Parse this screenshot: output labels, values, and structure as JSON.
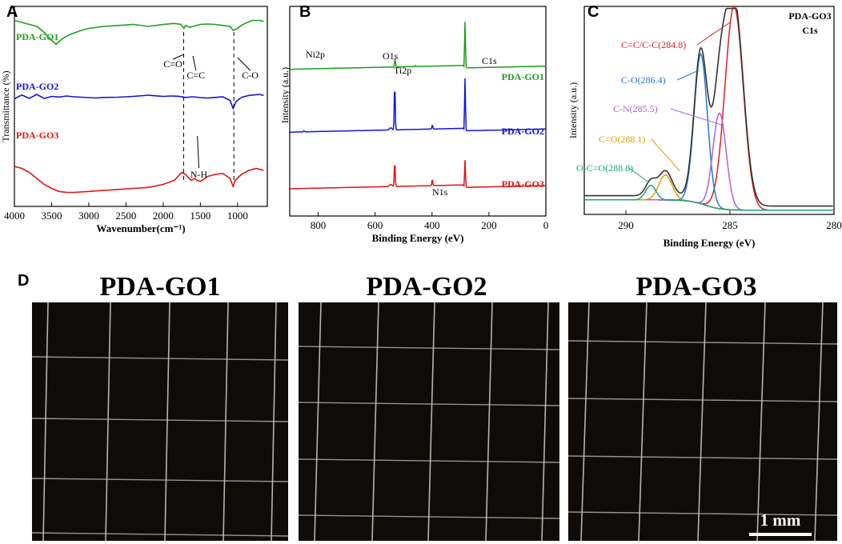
{
  "panels": {
    "a": "A",
    "b": "B",
    "c": "C",
    "d": "D"
  },
  "colors": {
    "go1": "#1e9e1e",
    "go2": "#1414d8",
    "go3": "#e01414",
    "grey": "#555555",
    "c_sum": "#333333",
    "c_cc": "#e02020",
    "c_co": "#1f78d8",
    "c_cn": "#b060d8",
    "c_ceo": "#e0a000",
    "c_oceo": "#20a080",
    "c_base": "#20a020"
  },
  "chart_data": [
    {
      "id": "ftir",
      "type": "line",
      "xlabel": "Wavenumber(cm⁻¹)",
      "ylabel": "Transmittance (%)",
      "xlim": [
        4000,
        600
      ],
      "x_ticks": [
        4000,
        3500,
        3000,
        2500,
        2000,
        1500,
        1000
      ],
      "series": [
        {
          "name": "PDA-GO1",
          "points": [
            [
              4000,
              0.93
            ],
            [
              3900,
              0.92
            ],
            [
              3800,
              0.91
            ],
            [
              3700,
              0.9
            ],
            [
              3600,
              0.87
            ],
            [
              3500,
              0.83
            ],
            [
              3440,
              0.81
            ],
            [
              3350,
              0.84
            ],
            [
              3250,
              0.86
            ],
            [
              3100,
              0.88
            ],
            [
              3000,
              0.89
            ],
            [
              2800,
              0.9
            ],
            [
              2600,
              0.905
            ],
            [
              2400,
              0.91
            ],
            [
              2200,
              0.9
            ],
            [
              2100,
              0.905
            ],
            [
              2000,
              0.91
            ],
            [
              1850,
              0.915
            ],
            [
              1760,
              0.91
            ],
            [
              1720,
              0.89
            ],
            [
              1700,
              0.905
            ],
            [
              1640,
              0.895
            ],
            [
              1600,
              0.9
            ],
            [
              1500,
              0.91
            ],
            [
              1400,
              0.912
            ],
            [
              1300,
              0.91
            ],
            [
              1200,
              0.905
            ],
            [
              1100,
              0.9
            ],
            [
              1060,
              0.88
            ],
            [
              1000,
              0.89
            ],
            [
              950,
              0.905
            ],
            [
              900,
              0.915
            ],
            [
              800,
              0.93
            ],
            [
              700,
              0.93
            ],
            [
              650,
              0.925
            ]
          ]
        },
        {
          "name": "PDA-GO2",
          "points": [
            [
              4000,
              0.55
            ],
            [
              3900,
              0.545
            ],
            [
              3800,
              0.552
            ],
            [
              3700,
              0.548
            ],
            [
              3600,
              0.552
            ],
            [
              3500,
              0.55
            ],
            [
              3400,
              0.547
            ],
            [
              3300,
              0.552
            ],
            [
              3200,
              0.548
            ],
            [
              3100,
              0.546
            ],
            [
              3000,
              0.544
            ],
            [
              2900,
              0.542
            ],
            [
              2800,
              0.545
            ],
            [
              2600,
              0.546
            ],
            [
              2400,
              0.55
            ],
            [
              2200,
              0.556
            ],
            [
              2100,
              0.553
            ],
            [
              2000,
              0.55
            ],
            [
              1900,
              0.552
            ],
            [
              1800,
              0.551
            ],
            [
              1700,
              0.545
            ],
            [
              1600,
              0.548
            ],
            [
              1500,
              0.544
            ],
            [
              1400,
              0.542
            ],
            [
              1300,
              0.545
            ],
            [
              1200,
              0.548
            ],
            [
              1100,
              0.53
            ],
            [
              1060,
              0.49
            ],
            [
              1020,
              0.525
            ],
            [
              950,
              0.545
            ],
            [
              850,
              0.555
            ],
            [
              700,
              0.56
            ],
            [
              650,
              0.555
            ]
          ]
        },
        {
          "name": "PDA-GO3",
          "points": [
            [
              4000,
              0.2
            ],
            [
              3900,
              0.19
            ],
            [
              3800,
              0.17
            ],
            [
              3700,
              0.14
            ],
            [
              3600,
              0.11
            ],
            [
              3500,
              0.09
            ],
            [
              3400,
              0.075
            ],
            [
              3300,
              0.07
            ],
            [
              3200,
              0.07
            ],
            [
              3000,
              0.075
            ],
            [
              2800,
              0.08
            ],
            [
              2600,
              0.085
            ],
            [
              2400,
              0.09
            ],
            [
              2200,
              0.095
            ],
            [
              2000,
              0.11
            ],
            [
              1850,
              0.13
            ],
            [
              1750,
              0.17
            ],
            [
              1700,
              0.16
            ],
            [
              1650,
              0.14
            ],
            [
              1620,
              0.13
            ],
            [
              1580,
              0.14
            ],
            [
              1540,
              0.13
            ],
            [
              1500,
              0.125
            ],
            [
              1460,
              0.135
            ],
            [
              1400,
              0.15
            ],
            [
              1300,
              0.16
            ],
            [
              1200,
              0.165
            ],
            [
              1100,
              0.14
            ],
            [
              1060,
              0.1
            ],
            [
              1030,
              0.13
            ],
            [
              950,
              0.16
            ],
            [
              850,
              0.18
            ],
            [
              750,
              0.19
            ],
            [
              650,
              0.18
            ]
          ]
        }
      ],
      "annotations": [
        "C=O",
        "C=C",
        "C-O",
        "N-H"
      ]
    },
    {
      "id": "xps-survey",
      "type": "line",
      "xlabel": "Binding Energy (eV)",
      "ylabel": "Intensity (a.u.)",
      "xlim": [
        900,
        0
      ],
      "x_ticks": [
        800,
        600,
        400,
        200,
        0
      ],
      "series": [
        {
          "name": "PDA-GO1",
          "baseline": 0.7,
          "peaks": [
            [
              530,
              0.04
            ],
            [
              284,
              0.22
            ],
            [
              460,
              0.005
            ]
          ]
        },
        {
          "name": "PDA-GO2",
          "baseline": 0.4,
          "peaks": [
            [
              531,
              0.22
            ],
            [
              284,
              0.25
            ],
            [
              399,
              0.02
            ],
            [
              850,
              0.005
            ]
          ]
        },
        {
          "name": "PDA-GO3",
          "baseline": 0.13,
          "peaks": [
            [
              531,
              0.12
            ],
            [
              284,
              0.13
            ],
            [
              399,
              0.03
            ]
          ]
        }
      ],
      "annotations": [
        "Ni2p",
        "O1s",
        "Ti2p",
        "C1s",
        "N1s"
      ]
    },
    {
      "id": "xps-c1s",
      "type": "line",
      "title": "PDA-GO3",
      "subtitle": "C1s",
      "xlabel": "Binding Energy (eV)",
      "ylabel": "Intensity (a.u.)",
      "xlim": [
        292,
        280
      ],
      "x_ticks": [
        290,
        285,
        280
      ],
      "components": [
        {
          "name": "C=C/C-C(284.8)",
          "center": 284.8,
          "height": 0.98,
          "width": 0.62
        },
        {
          "name": "C-O(286.4)",
          "center": 286.4,
          "height": 0.72,
          "width": 0.45
        },
        {
          "name": "C-N(285.5)",
          "center": 285.5,
          "height": 0.46,
          "width": 0.45
        },
        {
          "name": "C=O(288.1)",
          "center": 288.1,
          "height": 0.12,
          "width": 0.45
        },
        {
          "name": "O-C=O(288.8)",
          "center": 288.8,
          "height": 0.07,
          "width": 0.35
        }
      ]
    }
  ],
  "photos": {
    "titles": [
      "PDA-GO1",
      "PDA-GO2",
      "PDA-GO3"
    ],
    "scale_bar": "1 mm"
  }
}
